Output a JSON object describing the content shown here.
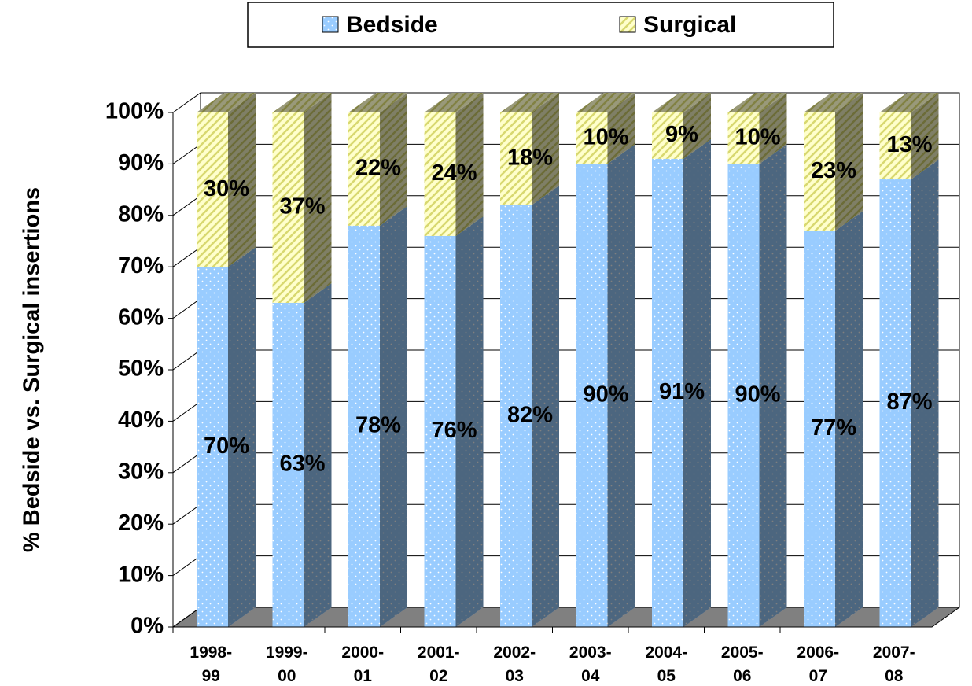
{
  "chart_data": {
    "type": "stacked-bar-3d",
    "categories": [
      "1998-\n99",
      "1999-\n00",
      "2000-\n01",
      "2001-\n02",
      "2002-\n03",
      "2003-\n04",
      "2004-\n05",
      "2005-\n06",
      "2006-\n07",
      "2007-\n08"
    ],
    "series": [
      {
        "name": "Bedside",
        "color": "#99ccff",
        "pattern": "dots",
        "values": [
          70,
          63,
          78,
          76,
          82,
          90,
          91,
          90,
          77,
          87
        ],
        "value_labels": [
          "70%",
          "63%",
          "78%",
          "76%",
          "82%",
          "90%",
          "91%",
          "90%",
          "77%",
          "87%"
        ]
      },
      {
        "name": "Surgical",
        "color": "#ffffcc",
        "pattern": "stripes",
        "values": [
          30,
          37,
          22,
          24,
          18,
          10,
          9,
          10,
          23,
          13
        ],
        "value_labels": [
          "30%",
          "37%",
          "22%",
          "24%",
          "18%",
          "10%",
          "9%",
          "10%",
          "23%",
          "13%"
        ]
      }
    ],
    "y_label": "% Bedside vs. Surgical  insertions",
    "ylim": [
      0,
      100
    ],
    "yticks": [
      {
        "value": 0,
        "label": "0%"
      },
      {
        "value": 10,
        "label": "10%"
      },
      {
        "value": 20,
        "label": "20%"
      },
      {
        "value": 30,
        "label": "30%"
      },
      {
        "value": 40,
        "label": "40%"
      },
      {
        "value": 50,
        "label": "50%"
      },
      {
        "value": 60,
        "label": "60%"
      },
      {
        "value": 70,
        "label": "70%"
      },
      {
        "value": 80,
        "label": "80%"
      },
      {
        "value": 90,
        "label": "90%"
      },
      {
        "value": 100,
        "label": "100%"
      }
    ],
    "grid": true,
    "legend": "top"
  }
}
